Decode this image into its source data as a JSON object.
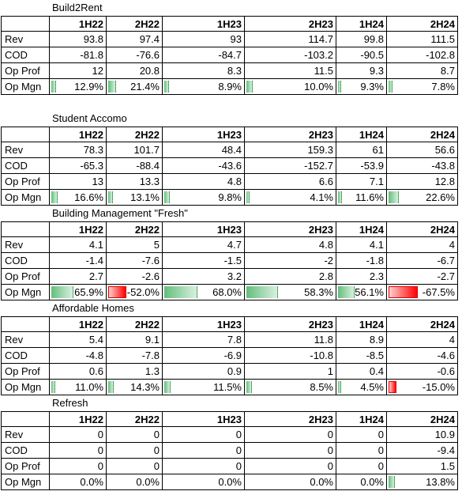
{
  "columns": [
    "1H22",
    "2H22",
    "1H23",
    "2H23",
    "1H24",
    "2H24"
  ],
  "colors": {
    "positive_bar": "#63be7b",
    "negative_bar": "#ff0000",
    "grid": "#000000"
  },
  "sections": [
    {
      "title": "Build2Rent",
      "rows": [
        {
          "label": "Rev",
          "values": [
            "93.8",
            "97.4",
            "93",
            "114.7",
            "99.8",
            "111.5"
          ]
        },
        {
          "label": "COD",
          "values": [
            "-81.8",
            "-76.6",
            "-84.7",
            "-103.2",
            "-90.5",
            "-102.8"
          ]
        },
        {
          "label": "Op Prof",
          "values": [
            "12",
            "20.8",
            "8.3",
            "11.5",
            "9.3",
            "8.7"
          ]
        },
        {
          "label": "Op Mgn",
          "values": [
            "12.9%",
            "21.4%",
            "8.9%",
            "10.0%",
            "9.3%",
            "7.8%"
          ],
          "bars": [
            12.9,
            21.4,
            8.9,
            10.0,
            9.3,
            7.8
          ]
        }
      ]
    },
    {
      "title": "Student Accomo",
      "rows": [
        {
          "label": "Rev",
          "values": [
            "78.3",
            "101.7",
            "48.4",
            "159.3",
            "61",
            "56.6"
          ]
        },
        {
          "label": "COD",
          "values": [
            "-65.3",
            "-88.4",
            "-43.6",
            "-152.7",
            "-53.9",
            "-43.8"
          ]
        },
        {
          "label": "Op Prof",
          "values": [
            "13",
            "13.3",
            "4.8",
            "6.6",
            "7.1",
            "12.8"
          ]
        },
        {
          "label": "Op Mgn",
          "values": [
            "16.6%",
            "13.1%",
            "9.8%",
            "4.1%",
            "11.6%",
            "22.6%"
          ],
          "bars": [
            16.6,
            13.1,
            9.8,
            4.1,
            11.6,
            22.6
          ]
        }
      ]
    },
    {
      "title": "Building Management \"Fresh\"",
      "rows": [
        {
          "label": "Rev",
          "values": [
            "4.1",
            "5",
            "4.7",
            "4.8",
            "4.1",
            "4"
          ]
        },
        {
          "label": "COD",
          "values": [
            "-1.4",
            "-7.6",
            "-1.5",
            "-2",
            "-1.8",
            "-6.7"
          ]
        },
        {
          "label": "Op Prof",
          "values": [
            "2.7",
            "-2.6",
            "3.2",
            "2.8",
            "2.3",
            "-2.7"
          ]
        },
        {
          "label": "Op Mgn",
          "values": [
            "65.9%",
            "-52.0%",
            "68.0%",
            "58.3%",
            "56.1%",
            "-67.5%"
          ],
          "bars": [
            65.9,
            -52.0,
            68.0,
            58.3,
            56.1,
            -67.5
          ]
        }
      ]
    },
    {
      "title": "Affordable Homes",
      "rows": [
        {
          "label": "Rev",
          "values": [
            "5.4",
            "9.1",
            "7.8",
            "11.8",
            "8.9",
            "4"
          ]
        },
        {
          "label": "COD",
          "values": [
            "-4.8",
            "-7.8",
            "-6.9",
            "-10.8",
            "-8.5",
            "-4.6"
          ]
        },
        {
          "label": "Op Prof",
          "values": [
            "0.6",
            "1.3",
            "0.9",
            "1",
            "0.4",
            "-0.6"
          ]
        },
        {
          "label": "Op Mgn",
          "values": [
            "11.0%",
            "14.3%",
            "11.5%",
            "8.5%",
            "4.5%",
            "-15.0%"
          ],
          "bars": [
            11.0,
            14.3,
            11.5,
            8.5,
            4.5,
            -15.0
          ]
        }
      ]
    },
    {
      "title": "Refresh",
      "rows": [
        {
          "label": "Rev",
          "values": [
            "0",
            "0",
            "0",
            "0",
            "0",
            "10.9"
          ]
        },
        {
          "label": "COD",
          "values": [
            "0",
            "0",
            "0",
            "0",
            "0",
            "-9.4"
          ]
        },
        {
          "label": "Op Prof",
          "values": [
            "0",
            "0",
            "0",
            "0",
            "0",
            "1.5"
          ]
        },
        {
          "label": "Op Mgn",
          "values": [
            "0.0%",
            "0.0%",
            "0.0%",
            "0.0%",
            "0.0%",
            "13.8%"
          ],
          "bars": [
            0,
            0,
            0,
            0,
            0,
            13.8
          ]
        }
      ]
    }
  ]
}
